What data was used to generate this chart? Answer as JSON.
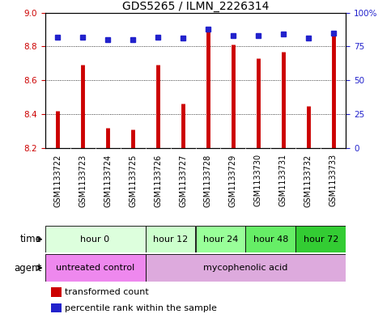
{
  "title": "GDS5265 / ILMN_2226314",
  "samples": [
    "GSM1133722",
    "GSM1133723",
    "GSM1133724",
    "GSM1133725",
    "GSM1133726",
    "GSM1133727",
    "GSM1133728",
    "GSM1133729",
    "GSM1133730",
    "GSM1133731",
    "GSM1133732",
    "GSM1133733"
  ],
  "transformed_counts": [
    8.42,
    8.69,
    8.32,
    8.31,
    8.69,
    8.46,
    8.91,
    8.81,
    8.73,
    8.77,
    8.45,
    8.87
  ],
  "percentile_ranks": [
    82,
    82,
    80,
    80,
    82,
    81,
    88,
    83,
    83,
    84,
    81,
    85
  ],
  "ylim_left": [
    8.2,
    9.0
  ],
  "ylim_right": [
    0,
    100
  ],
  "yticks_left": [
    8.2,
    8.4,
    8.6,
    8.8,
    9.0
  ],
  "yticks_right": [
    0,
    25,
    50,
    75,
    100
  ],
  "bar_color": "#cc0000",
  "dot_color": "#2222cc",
  "bar_bottom": 8.2,
  "time_groups": [
    {
      "label": "hour 0",
      "start": 0,
      "end": 3,
      "color": "#ddffdd"
    },
    {
      "label": "hour 12",
      "start": 4,
      "end": 5,
      "color": "#ccffcc"
    },
    {
      "label": "hour 24",
      "start": 6,
      "end": 7,
      "color": "#99ff99"
    },
    {
      "label": "hour 48",
      "start": 8,
      "end": 9,
      "color": "#66ee66"
    },
    {
      "label": "hour 72",
      "start": 10,
      "end": 11,
      "color": "#33cc33"
    }
  ],
  "agent_groups": [
    {
      "label": "untreated control",
      "start": 0,
      "end": 3,
      "color": "#ee88ee"
    },
    {
      "label": "mycophenolic acid",
      "start": 4,
      "end": 11,
      "color": "#ddaadd"
    }
  ],
  "sample_bg_color": "#cccccc",
  "legend_bar_label": "transformed count",
  "legend_dot_label": "percentile rank within the sample",
  "xlabel_time": "time",
  "xlabel_agent": "agent",
  "background_color": "#ffffff",
  "title_fontsize": 10,
  "tick_fontsize": 7.5,
  "label_fontsize": 8.5,
  "sample_fontsize": 7
}
